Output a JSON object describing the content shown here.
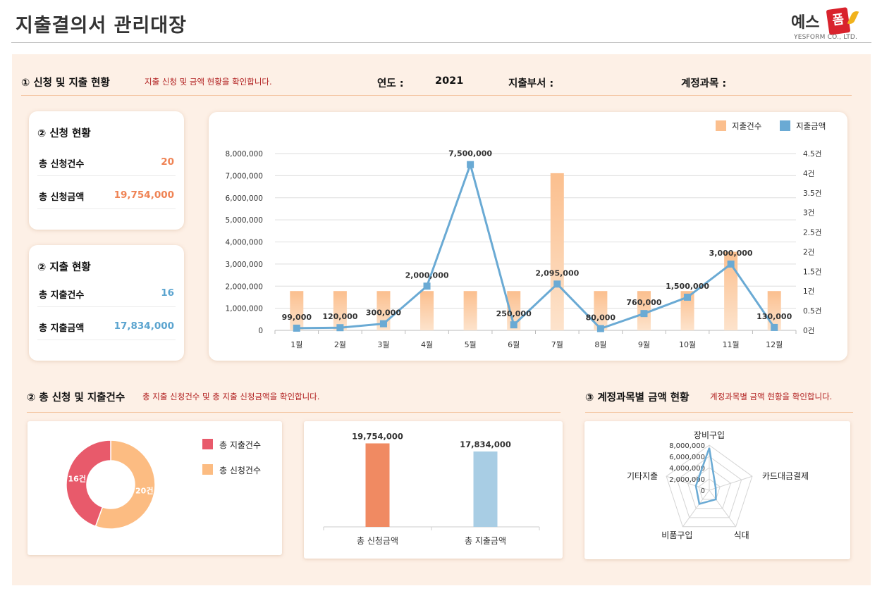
{
  "header": {
    "title": "지출결의서 관리대장",
    "logo_main": "예스",
    "logo_box": "폼",
    "logo_sub": "YESFORM CO., LTD."
  },
  "section1": {
    "heading": "① 신청 및 지출 현황",
    "desc": "지출 신청 및 금액 현황을 확인합니다.",
    "year_label": "연도 :",
    "year_value": "2021",
    "dept_label": "지출부서 :",
    "dept_value": "",
    "account_label": "계정과목 :",
    "account_value": ""
  },
  "apply_card": {
    "title": "② 신청 현황",
    "count_label": "총 신청건수",
    "count_value": "20",
    "amount_label": "총 신청금액",
    "amount_value": "19,754,000"
  },
  "expense_card": {
    "title": "② 지출 현황",
    "count_label": "총 지출건수",
    "count_value": "16",
    "amount_label": "총 지출금액",
    "amount_value": "17,834,000"
  },
  "section2": {
    "heading": "② 총 신청 및 지출건수",
    "desc": "총 지출 신청건수 및 총 지출 신청금액을 확인합니다."
  },
  "section3": {
    "heading": "③ 계정과목별 금액 현황",
    "desc": "계정과목별 금액 현황을 확인합니다."
  },
  "colors": {
    "bar_orange": "#fbbf8e",
    "line_blue": "#6aaad4",
    "donut_red": "#e85a6b",
    "donut_orange": "#fcbc82",
    "bar_apply": "#f08a62",
    "bar_expense": "#a8cde4"
  },
  "chart_data": [
    {
      "type": "bar+line",
      "categories": [
        "1월",
        "2월",
        "3월",
        "4월",
        "5월",
        "6월",
        "7월",
        "8월",
        "9월",
        "10월",
        "11월",
        "12월"
      ],
      "series": [
        {
          "name": "지출건수",
          "type": "bar",
          "axis": "right",
          "values": [
            1,
            1,
            1,
            1,
            1,
            1,
            4,
            1,
            1,
            1,
            2,
            1
          ]
        },
        {
          "name": "지출금액",
          "type": "line",
          "axis": "left",
          "values": [
            99000,
            120000,
            300000,
            2000000,
            7500000,
            250000,
            2095000,
            80000,
            760000,
            1500000,
            3000000,
            130000
          ],
          "labels": [
            "99,000",
            "120,000",
            "300,000",
            "2,000,000",
            "7,500,000",
            "250,000",
            "2,095,000",
            "80,000",
            "760,000",
            "1,500,000",
            "3,000,000",
            "130,000"
          ]
        }
      ],
      "ylim_left": [
        0,
        8000000
      ],
      "ylim_right": [
        0,
        4.5
      ],
      "left_ticks": [
        "0",
        "1,000,000",
        "2,000,000",
        "3,000,000",
        "4,000,000",
        "5,000,000",
        "6,000,000",
        "7,000,000",
        "8,000,000"
      ],
      "right_ticks": [
        "0건",
        "0.5건",
        "1건",
        "1.5건",
        "2건",
        "2.5건",
        "3건",
        "3.5건",
        "4건",
        "4.5건"
      ],
      "legend": [
        "지출건수",
        "지출금액"
      ]
    },
    {
      "type": "pie",
      "donut": true,
      "labels": [
        "총 지출건수",
        "총 신청건수"
      ],
      "values": [
        16,
        20
      ],
      "slice_labels": [
        "16건",
        "20건"
      ]
    },
    {
      "type": "bar",
      "categories": [
        "총 신청금액",
        "총 지출금액"
      ],
      "values": [
        19754000,
        17834000
      ],
      "value_labels": [
        "19,754,000",
        "17,834,000"
      ]
    },
    {
      "type": "radar",
      "categories": [
        "장비구입",
        "카드대금결제",
        "식대",
        "비품구입",
        "기타지출"
      ],
      "values": [
        7500000,
        1200000,
        2000000,
        3000000,
        2500000
      ],
      "ticks": [
        "0",
        "2,000,000",
        "4,000,000",
        "6,000,000",
        "8,000,000"
      ],
      "rmax": 8000000
    }
  ]
}
